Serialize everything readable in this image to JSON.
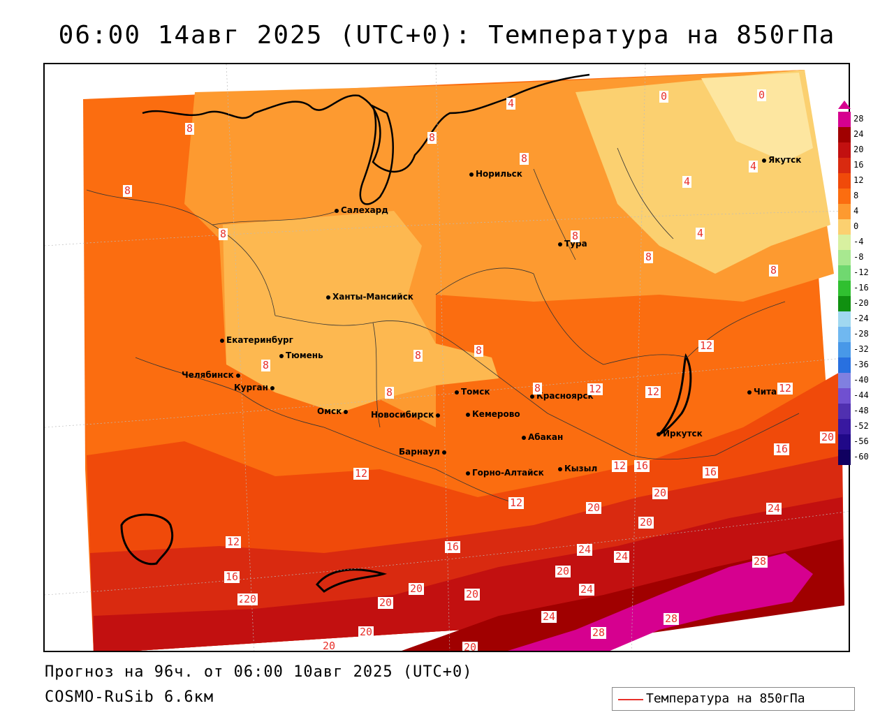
{
  "title": "06:00 14авг 2025 (UTC+0): Температура на 850гПа",
  "footer": {
    "forecast": "Прогноз на 96ч. от 06:00 10авг 2025 (UTC+0)",
    "model": "COSMO-RuSib 6.6км"
  },
  "legend": {
    "line_label": "Температура на 850гПа",
    "line_color": "#e8302a"
  },
  "colorbar": {
    "ticks": [
      "28",
      "24",
      "20",
      "16",
      "12",
      "8",
      "4",
      "0",
      "-4",
      "-8",
      "-12",
      "-16",
      "-20",
      "-24",
      "-28",
      "-32",
      "-36",
      "-40",
      "-44",
      "-48",
      "-52",
      "-56",
      "-60"
    ],
    "colors": [
      "#d6008f",
      "#a00000",
      "#c21010",
      "#d92a10",
      "#f04a0a",
      "#fb6d10",
      "#fd9a30",
      "#fbd070",
      "#d8f0a0",
      "#a8e890",
      "#70d870",
      "#30c030",
      "#109010",
      "#a0d8f0",
      "#70b8f0",
      "#4898e8",
      "#2870e0",
      "#8080e0",
      "#7050d0",
      "#5030b0",
      "#3818a0",
      "#200888",
      "#100060"
    ]
  },
  "cities": [
    {
      "name": "Норильск"
    },
    {
      "name": "Салехард"
    },
    {
      "name": "Якутск"
    },
    {
      "name": "Тура"
    },
    {
      "name": "Ханты-Мансийск"
    },
    {
      "name": "Екатеринбург"
    },
    {
      "name": "Тюмень"
    },
    {
      "name": "Челябинск"
    },
    {
      "name": "Курган"
    },
    {
      "name": "Омск"
    },
    {
      "name": "Новосибирск"
    },
    {
      "name": "Томск"
    },
    {
      "name": "Кемерово"
    },
    {
      "name": "Красноярск"
    },
    {
      "name": "Абакан"
    },
    {
      "name": "Барнаул"
    },
    {
      "name": "Горно-Алтайск"
    },
    {
      "name": "Кызыл"
    },
    {
      "name": "Иркутск"
    },
    {
      "name": "Чита"
    }
  ],
  "contour_labels": [
    "8",
    "8",
    "8",
    "8",
    "8",
    "4",
    "8",
    "0",
    "0",
    "4",
    "4",
    "4",
    "8",
    "8",
    "8",
    "8",
    "8",
    "8",
    "8",
    "12",
    "12",
    "12",
    "12",
    "12",
    "16",
    "16",
    "20",
    "12",
    "12",
    "16",
    "16",
    "20",
    "20",
    "16",
    "12",
    "20",
    "20",
    "24",
    "24",
    "24",
    "20",
    "28",
    "16",
    "20",
    "20",
    "20",
    "24",
    "20",
    "24",
    "28",
    "28",
    "20",
    "20",
    "20"
  ]
}
